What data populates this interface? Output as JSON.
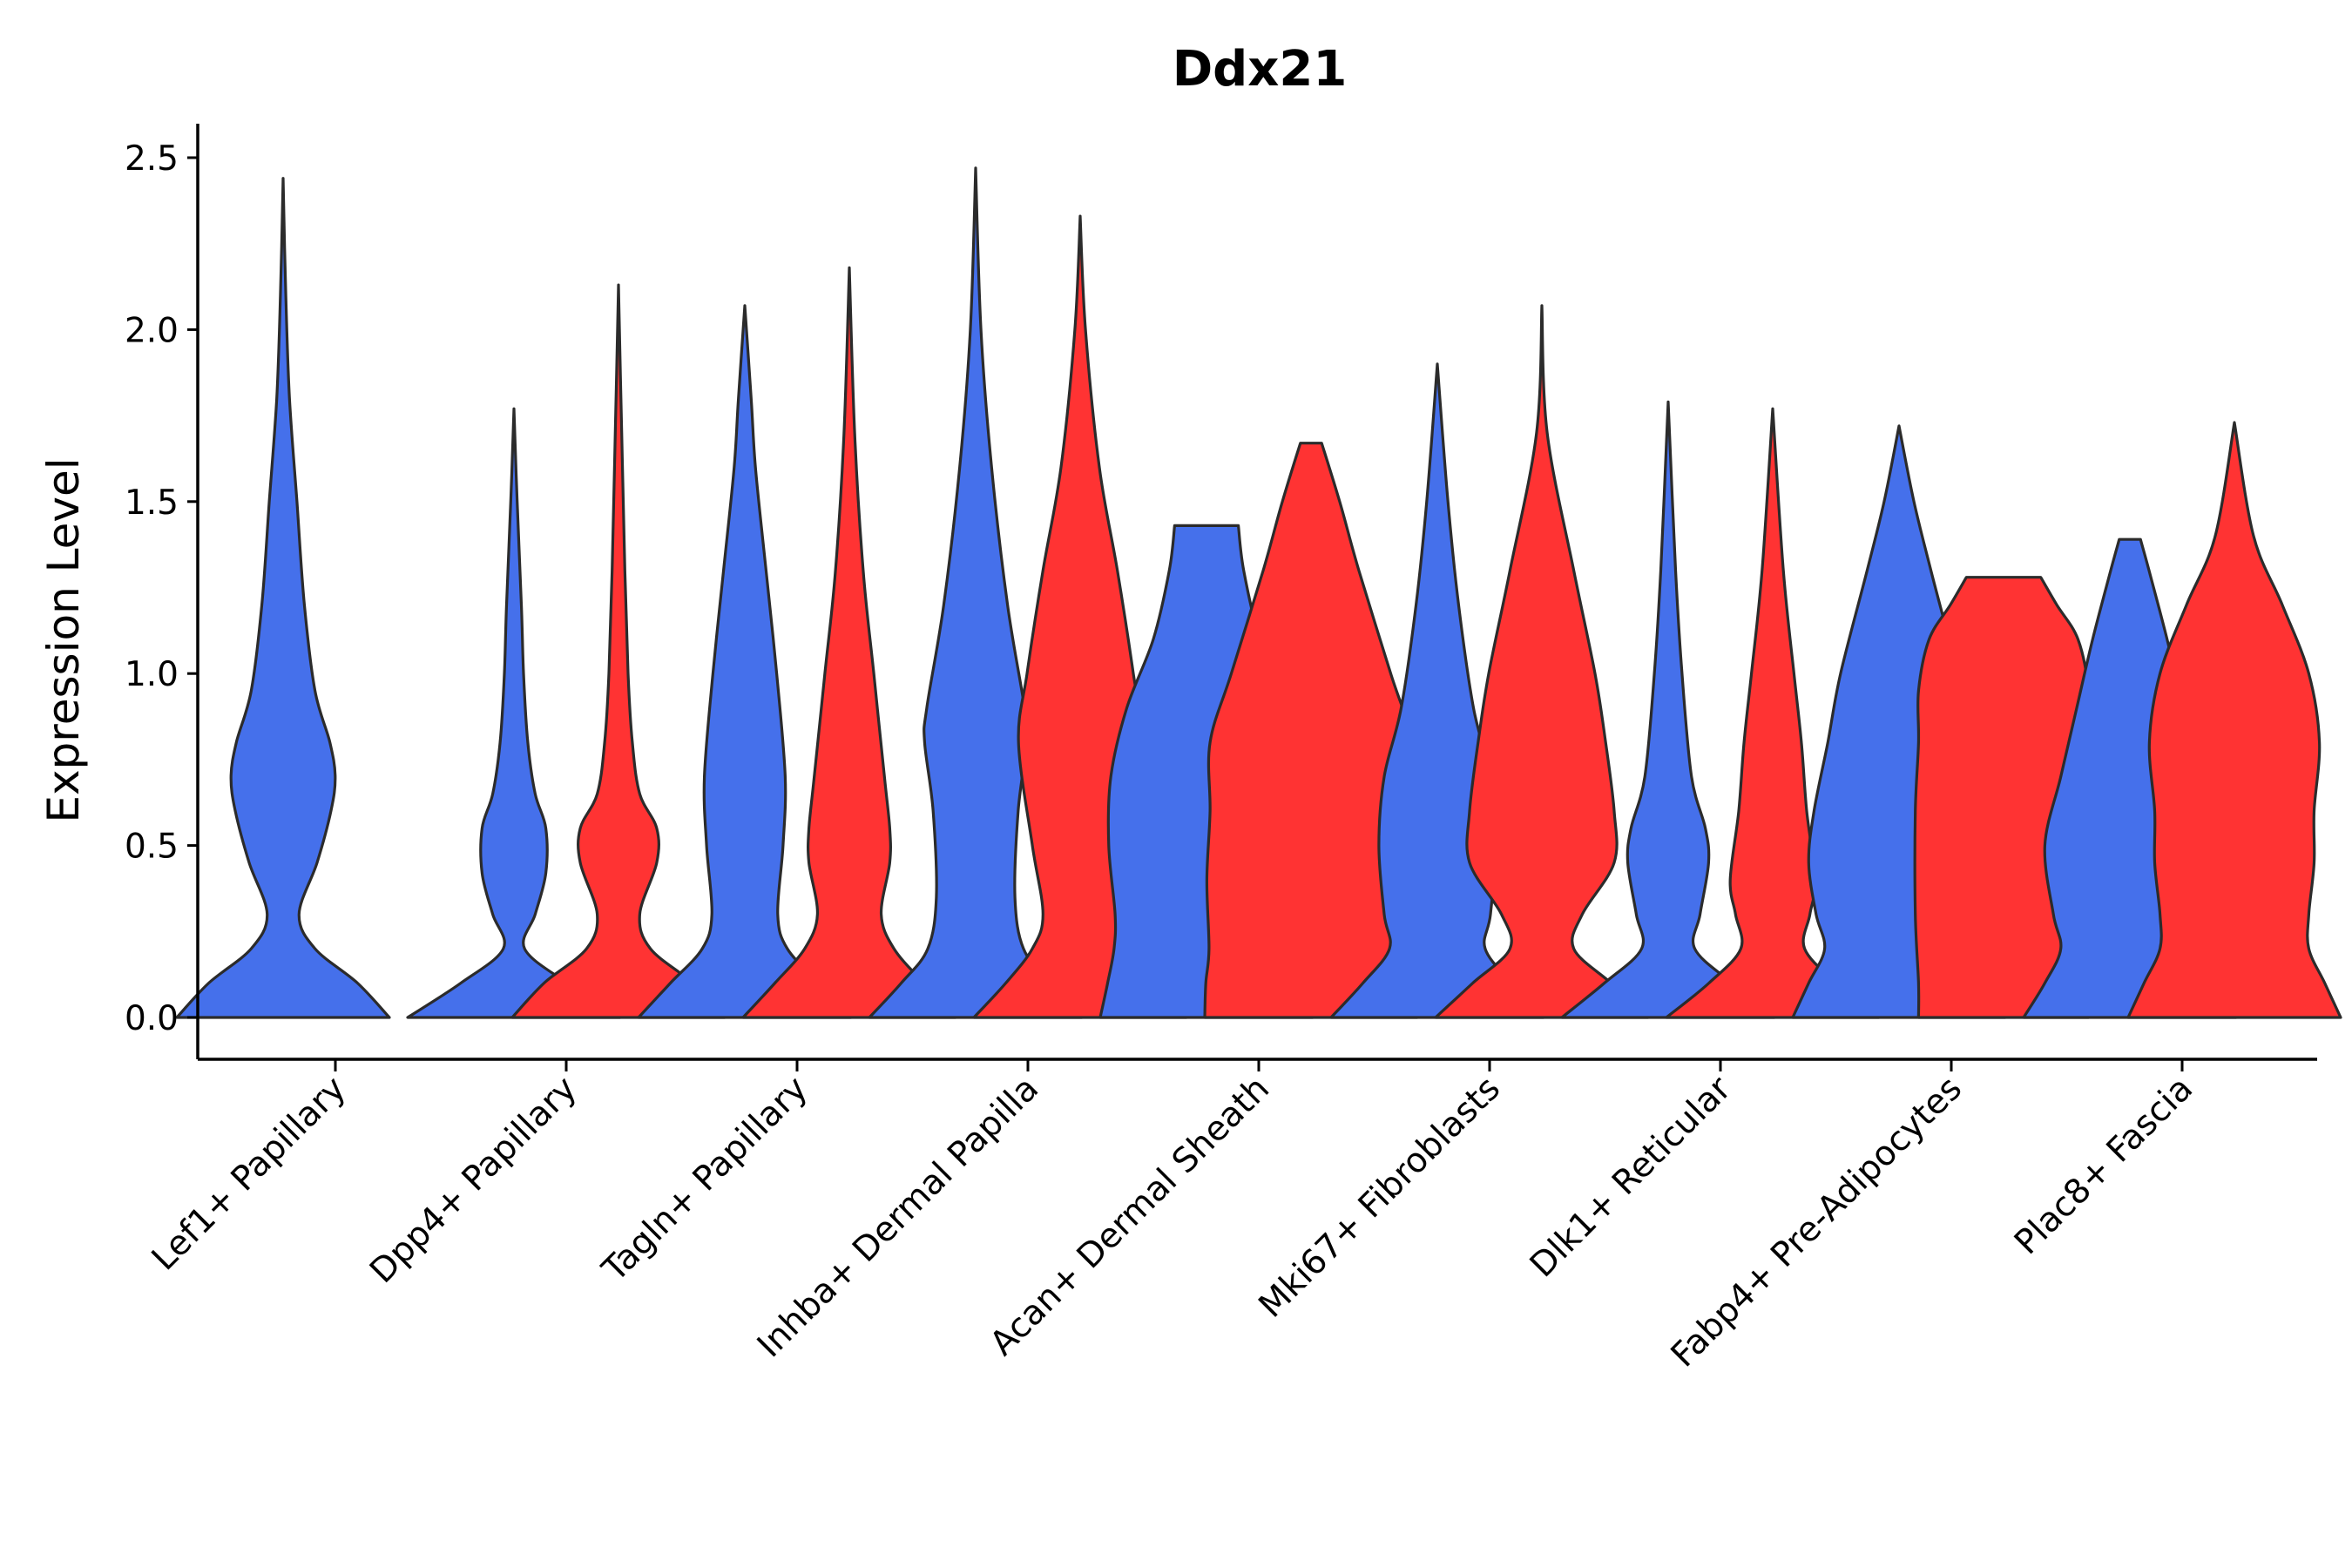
{
  "chart_data": {
    "type": "violin",
    "title": "Ddx21",
    "xlabel": "",
    "ylabel": "Expression Level",
    "ylim": [
      -0.12,
      2.6
    ],
    "yticks": [
      0.0,
      0.5,
      1.0,
      1.5,
      2.0,
      2.5
    ],
    "ytick_labels": [
      "0.0",
      "0.5",
      "1.0",
      "1.5",
      "2.0",
      "2.5"
    ],
    "colors": {
      "blue_group": "#4570EB",
      "red_group": "#FF3333",
      "outline": "#2b2b2b"
    },
    "categories": [
      "Lef1+ Papillary",
      "Dpp4+ Papillary",
      "Tagln+ Papillary",
      "Inhba+ Dermal Papilla",
      "Acan+ Dermal Sheath",
      "Mki67+ Fibroblasts",
      "Dlk1+ Reticular",
      "Fabp4+ Pre-Adipocytes",
      "Plac8+ Fascia"
    ],
    "violins": [
      {
        "category": "Lef1+ Papillary",
        "group": "blue",
        "max": 2.44,
        "profile": [
          [
            0,
            1.0
          ],
          [
            0.1,
            0.7
          ],
          [
            0.2,
            0.3
          ],
          [
            0.3,
            0.15
          ],
          [
            0.45,
            0.32
          ],
          [
            0.6,
            0.45
          ],
          [
            0.7,
            0.49
          ],
          [
            0.8,
            0.44
          ],
          [
            0.95,
            0.3
          ],
          [
            1.2,
            0.2
          ],
          [
            1.5,
            0.13
          ],
          [
            1.8,
            0.06
          ],
          [
            2.1,
            0.025
          ],
          [
            2.44,
            0.0
          ]
        ]
      },
      {
        "category": "Dpp4+ Papillary",
        "group": "blue",
        "max": 1.77,
        "profile": [
          [
            0,
            1.0
          ],
          [
            0.1,
            0.5
          ],
          [
            0.2,
            0.1
          ],
          [
            0.3,
            0.2
          ],
          [
            0.42,
            0.3
          ],
          [
            0.55,
            0.3
          ],
          [
            0.65,
            0.2
          ],
          [
            0.8,
            0.13
          ],
          [
            1.0,
            0.09
          ],
          [
            1.2,
            0.07
          ],
          [
            1.5,
            0.03
          ],
          [
            1.77,
            0.0
          ]
        ]
      },
      {
        "category": "Dpp4+ Papillary",
        "group": "red",
        "max": 2.13,
        "profile": [
          [
            0,
            1.0
          ],
          [
            0.1,
            0.7
          ],
          [
            0.2,
            0.3
          ],
          [
            0.3,
            0.2
          ],
          [
            0.45,
            0.36
          ],
          [
            0.55,
            0.36
          ],
          [
            0.65,
            0.2
          ],
          [
            0.8,
            0.13
          ],
          [
            1.0,
            0.09
          ],
          [
            1.3,
            0.06
          ],
          [
            1.7,
            0.03
          ],
          [
            2.13,
            0.0
          ]
        ]
      },
      {
        "category": "Tagln+ Papillary",
        "group": "blue",
        "max": 2.07,
        "profile": [
          [
            0,
            1.0
          ],
          [
            0.1,
            0.7
          ],
          [
            0.2,
            0.4
          ],
          [
            0.3,
            0.31
          ],
          [
            0.5,
            0.36
          ],
          [
            0.7,
            0.38
          ],
          [
            1.0,
            0.3
          ],
          [
            1.3,
            0.2
          ],
          [
            1.6,
            0.1
          ],
          [
            1.8,
            0.06
          ],
          [
            2.07,
            0.0
          ]
        ]
      },
      {
        "category": "Tagln+ Papillary",
        "group": "red",
        "max": 2.18,
        "profile": [
          [
            0,
            1.0
          ],
          [
            0.1,
            0.7
          ],
          [
            0.2,
            0.42
          ],
          [
            0.3,
            0.3
          ],
          [
            0.45,
            0.38
          ],
          [
            0.55,
            0.38
          ],
          [
            0.7,
            0.33
          ],
          [
            1.0,
            0.23
          ],
          [
            1.3,
            0.13
          ],
          [
            1.7,
            0.05
          ],
          [
            2.18,
            0.0
          ]
        ]
      },
      {
        "category": "Inhba+ Dermal Papilla",
        "group": "blue",
        "max": 2.47,
        "profile": [
          [
            0,
            1.0
          ],
          [
            0.1,
            0.7
          ],
          [
            0.2,
            0.45
          ],
          [
            0.35,
            0.37
          ],
          [
            0.6,
            0.4
          ],
          [
            0.8,
            0.48
          ],
          [
            0.9,
            0.46
          ],
          [
            1.2,
            0.3
          ],
          [
            1.6,
            0.15
          ],
          [
            2.0,
            0.05
          ],
          [
            2.47,
            0.0
          ]
        ]
      },
      {
        "category": "Inhba+ Dermal Papilla",
        "group": "red",
        "max": 2.33,
        "profile": [
          [
            0,
            1.0
          ],
          [
            0.1,
            0.7
          ],
          [
            0.2,
            0.45
          ],
          [
            0.3,
            0.35
          ],
          [
            0.5,
            0.45
          ],
          [
            0.8,
            0.58
          ],
          [
            1.0,
            0.5
          ],
          [
            1.3,
            0.35
          ],
          [
            1.6,
            0.18
          ],
          [
            2.0,
            0.05
          ],
          [
            2.33,
            0.0
          ]
        ]
      },
      {
        "category": "Acan+ Dermal Sheath",
        "group": "blue",
        "max": 1.43,
        "profile": [
          [
            0,
            1.0
          ],
          [
            0.1,
            0.93
          ],
          [
            0.2,
            0.87
          ],
          [
            0.3,
            0.86
          ],
          [
            0.5,
            0.92
          ],
          [
            0.7,
            0.9
          ],
          [
            0.9,
            0.75
          ],
          [
            1.1,
            0.5
          ],
          [
            1.3,
            0.35
          ],
          [
            1.43,
            0.3
          ]
        ]
      },
      {
        "category": "Acan+ Dermal Sheath",
        "group": "red",
        "max": 1.67,
        "profile": [
          [
            0,
            1.0
          ],
          [
            0.1,
            0.99
          ],
          [
            0.2,
            0.96
          ],
          [
            0.4,
            0.98
          ],
          [
            0.6,
            0.95
          ],
          [
            0.8,
            0.95
          ],
          [
            1.0,
            0.75
          ],
          [
            1.3,
            0.45
          ],
          [
            1.5,
            0.27
          ],
          [
            1.67,
            0.1
          ]
        ]
      },
      {
        "category": "Mki67+ Fibroblasts",
        "group": "blue",
        "max": 1.9,
        "profile": [
          [
            0,
            1.0
          ],
          [
            0.1,
            0.7
          ],
          [
            0.2,
            0.45
          ],
          [
            0.3,
            0.5
          ],
          [
            0.5,
            0.55
          ],
          [
            0.7,
            0.5
          ],
          [
            0.9,
            0.34
          ],
          [
            1.2,
            0.2
          ],
          [
            1.5,
            0.1
          ],
          [
            1.9,
            0.0
          ]
        ]
      },
      {
        "category": "Mki67+ Fibroblasts",
        "group": "red",
        "max": 2.07,
        "profile": [
          [
            0,
            1.0
          ],
          [
            0.1,
            0.65
          ],
          [
            0.2,
            0.3
          ],
          [
            0.3,
            0.38
          ],
          [
            0.45,
            0.68
          ],
          [
            0.6,
            0.68
          ],
          [
            0.8,
            0.6
          ],
          [
            1.0,
            0.5
          ],
          [
            1.3,
            0.3
          ],
          [
            1.7,
            0.05
          ],
          [
            2.07,
            0.0
          ]
        ]
      },
      {
        "category": "Dlk1+ Reticular",
        "group": "blue",
        "max": 1.79,
        "profile": [
          [
            0,
            1.0
          ],
          [
            0.1,
            0.6
          ],
          [
            0.2,
            0.25
          ],
          [
            0.3,
            0.3
          ],
          [
            0.45,
            0.38
          ],
          [
            0.55,
            0.35
          ],
          [
            0.7,
            0.22
          ],
          [
            1.0,
            0.13
          ],
          [
            1.3,
            0.07
          ],
          [
            1.79,
            0.0
          ]
        ]
      },
      {
        "category": "Dlk1+ Reticular",
        "group": "red",
        "max": 1.77,
        "profile": [
          [
            0,
            1.0
          ],
          [
            0.1,
            0.6
          ],
          [
            0.2,
            0.3
          ],
          [
            0.3,
            0.35
          ],
          [
            0.4,
            0.4
          ],
          [
            0.6,
            0.32
          ],
          [
            0.8,
            0.27
          ],
          [
            1.0,
            0.2
          ],
          [
            1.3,
            0.1
          ],
          [
            1.77,
            0.0
          ]
        ]
      },
      {
        "category": "Fabp4+ Pre-Adipocytes",
        "group": "blue",
        "max": 1.72,
        "profile": [
          [
            0,
            1.0
          ],
          [
            0.1,
            0.85
          ],
          [
            0.2,
            0.7
          ],
          [
            0.3,
            0.78
          ],
          [
            0.45,
            0.85
          ],
          [
            0.6,
            0.8
          ],
          [
            0.8,
            0.67
          ],
          [
            1.0,
            0.55
          ],
          [
            1.3,
            0.3
          ],
          [
            1.5,
            0.14
          ],
          [
            1.72,
            0.0
          ]
        ]
      },
      {
        "category": "Fabp4+ Pre-Adipocytes",
        "group": "red",
        "max": 1.28,
        "profile": [
          [
            0,
            0.8
          ],
          [
            0.1,
            0.8
          ],
          [
            0.3,
            0.83
          ],
          [
            0.6,
            0.83
          ],
          [
            0.8,
            0.8
          ],
          [
            0.95,
            0.8
          ],
          [
            1.1,
            0.7
          ],
          [
            1.2,
            0.5
          ],
          [
            1.28,
            0.35
          ]
        ]
      },
      {
        "category": "Plac8+ Fascia",
        "group": "blue",
        "max": 1.39,
        "profile": [
          [
            0,
            1.0
          ],
          [
            0.1,
            0.8
          ],
          [
            0.2,
            0.65
          ],
          [
            0.3,
            0.72
          ],
          [
            0.5,
            0.8
          ],
          [
            0.7,
            0.65
          ],
          [
            0.9,
            0.5
          ],
          [
            1.1,
            0.35
          ],
          [
            1.3,
            0.18
          ],
          [
            1.39,
            0.1
          ]
        ]
      },
      {
        "category": "Plac8+ Fascia",
        "group": "red",
        "max": 1.73,
        "profile": [
          [
            0,
            1.0
          ],
          [
            0.1,
            0.85
          ],
          [
            0.2,
            0.7
          ],
          [
            0.3,
            0.7
          ],
          [
            0.45,
            0.75
          ],
          [
            0.6,
            0.75
          ],
          [
            0.8,
            0.8
          ],
          [
            1.0,
            0.7
          ],
          [
            1.2,
            0.45
          ],
          [
            1.4,
            0.18
          ],
          [
            1.73,
            0.0
          ]
        ]
      }
    ]
  }
}
